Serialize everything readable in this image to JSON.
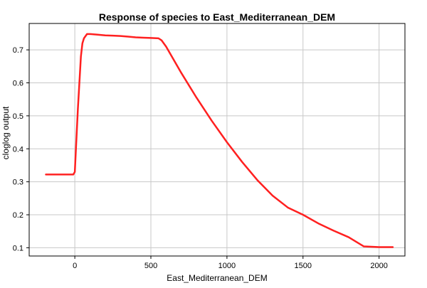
{
  "chart_data": {
    "type": "line",
    "title": "Response of species to East_Mediterranean_DEM",
    "xlabel": "East_Mediterranean_DEM",
    "ylabel": "cloglog output",
    "xlim": [
      -300,
      2170
    ],
    "ylim": [
      0.075,
      0.78
    ],
    "xticks": [
      0,
      500,
      1000,
      1500,
      2000
    ],
    "yticks": [
      0.1,
      0.2,
      0.3,
      0.4,
      0.5,
      0.6,
      0.7
    ],
    "grid": true,
    "legend": "none",
    "series": [
      {
        "color": "#ff2020",
        "x": [
          -190,
          -10,
          0,
          20,
          40,
          50,
          60,
          80,
          100,
          150,
          200,
          250,
          300,
          350,
          400,
          450,
          500,
          550,
          570,
          600,
          700,
          800,
          900,
          1000,
          1100,
          1200,
          1300,
          1400,
          1500,
          1600,
          1700,
          1800,
          1900,
          2000,
          2090
        ],
        "y": [
          0.322,
          0.322,
          0.33,
          0.52,
          0.68,
          0.72,
          0.735,
          0.748,
          0.748,
          0.746,
          0.744,
          0.743,
          0.742,
          0.74,
          0.738,
          0.737,
          0.736,
          0.735,
          0.729,
          0.71,
          0.63,
          0.555,
          0.485,
          0.42,
          0.36,
          0.305,
          0.258,
          0.222,
          0.2,
          0.174,
          0.152,
          0.132,
          0.104,
          0.102,
          0.102
        ]
      }
    ]
  }
}
